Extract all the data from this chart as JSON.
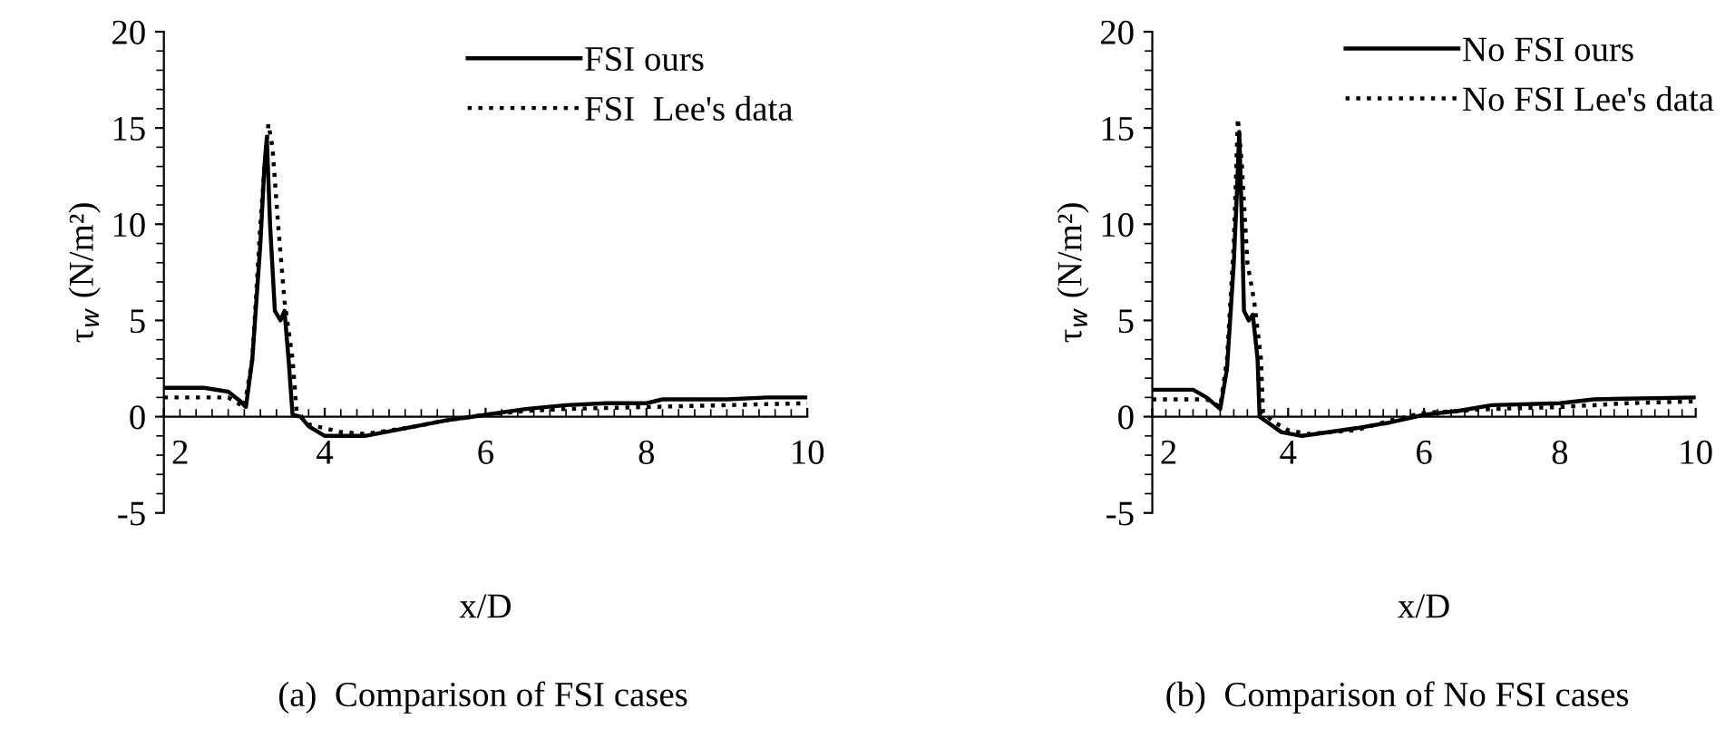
{
  "chart_data": [
    {
      "type": "line",
      "xlabel": "x/D",
      "ylabel": "τ$_{w}$ (N/m²)",
      "xlim": [
        2,
        10
      ],
      "ylim": [
        -5,
        20
      ],
      "xticks": [
        2,
        4,
        6,
        8,
        10
      ],
      "yticks": [
        -5,
        0,
        5,
        10,
        15,
        20
      ],
      "legend": "top right",
      "grid": false,
      "annotations": [
        "(a)  Comparison of FSI cases"
      ],
      "series": [
        {
          "name": "FSI ours",
          "color": "#000000",
          "line_style": "solid",
          "x": [
            2,
            2.5,
            2.8,
            2.95,
            3.02,
            3.1,
            3.2,
            3.25,
            3.28,
            3.32,
            3.38,
            3.45,
            3.5,
            3.55,
            3.6,
            3.7,
            3.8,
            4.0,
            4.5,
            5.0,
            5.5,
            6.0,
            6.5,
            7,
            7.5,
            8,
            8.2,
            9,
            9.5,
            10
          ],
          "values": [
            1.5,
            1.5,
            1.3,
            0.8,
            0.5,
            3,
            9,
            13,
            14.5,
            10,
            5.5,
            5,
            5.5,
            3,
            0.1,
            0,
            -0.5,
            -1.0,
            -1.0,
            -0.6,
            -0.2,
            0.1,
            0.4,
            0.6,
            0.7,
            0.7,
            0.9,
            0.9,
            1.0,
            1.0
          ]
        },
        {
          "name": "FSI  Lee's data",
          "color": "#000000",
          "line_style": "dotted",
          "x": [
            2,
            2.8,
            3.0,
            3.1,
            3.2,
            3.27,
            3.3,
            3.35,
            3.42,
            3.5,
            3.6,
            3.65,
            3.8,
            4.2,
            4.5,
            5,
            5.5,
            6,
            6.5,
            7,
            8,
            9,
            10
          ],
          "values": [
            1.0,
            1.0,
            0.5,
            3,
            10,
            14,
            15.2,
            14,
            10,
            6,
            3,
            0.3,
            -0.4,
            -0.8,
            -0.9,
            -0.6,
            -0.2,
            0.1,
            0.3,
            0.4,
            0.5,
            0.6,
            0.7
          ]
        }
      ]
    },
    {
      "type": "line",
      "xlabel": "x/D",
      "ylabel": "τ$_{w}$ (N/m²)",
      "xlim": [
        2,
        10
      ],
      "ylim": [
        -5,
        20
      ],
      "xticks": [
        2,
        4,
        6,
        8,
        10
      ],
      "yticks": [
        -5,
        0,
        5,
        10,
        15,
        20
      ],
      "legend": "top right",
      "grid": false,
      "annotations": [
        "(b)  Comparison of No FSI cases"
      ],
      "series": [
        {
          "name": "No FSI ours",
          "color": "#000000",
          "line_style": "solid",
          "x": [
            2,
            2.6,
            2.8,
            3.0,
            3.1,
            3.2,
            3.25,
            3.28,
            3.32,
            3.35,
            3.42,
            3.48,
            3.55,
            3.58,
            3.7,
            3.9,
            4.2,
            4.4,
            5,
            5.5,
            6,
            6.5,
            7,
            8,
            8.5,
            10
          ],
          "values": [
            1.4,
            1.4,
            1.0,
            0.4,
            2.5,
            8,
            12,
            14.8,
            10,
            5.5,
            5,
            5.3,
            3,
            0,
            -0.3,
            -0.8,
            -1.0,
            -0.9,
            -0.6,
            -0.3,
            0.1,
            0.3,
            0.6,
            0.7,
            0.9,
            1.0
          ]
        },
        {
          "name": "No FSI Lee's data",
          "color": "#000000",
          "line_style": "dotted",
          "x": [
            2,
            2.8,
            3.0,
            3.1,
            3.2,
            3.26,
            3.32,
            3.4,
            3.5,
            3.6,
            3.63,
            3.8,
            4.0,
            4.3,
            5,
            5.5,
            6,
            7,
            8,
            9,
            10
          ],
          "values": [
            0.9,
            0.9,
            0.5,
            3,
            9,
            15.5,
            13,
            8,
            6,
            3,
            0.2,
            -0.3,
            -0.7,
            -0.9,
            -0.7,
            -0.2,
            0.2,
            0.4,
            0.5,
            0.7,
            0.8
          ]
        }
      ]
    }
  ]
}
